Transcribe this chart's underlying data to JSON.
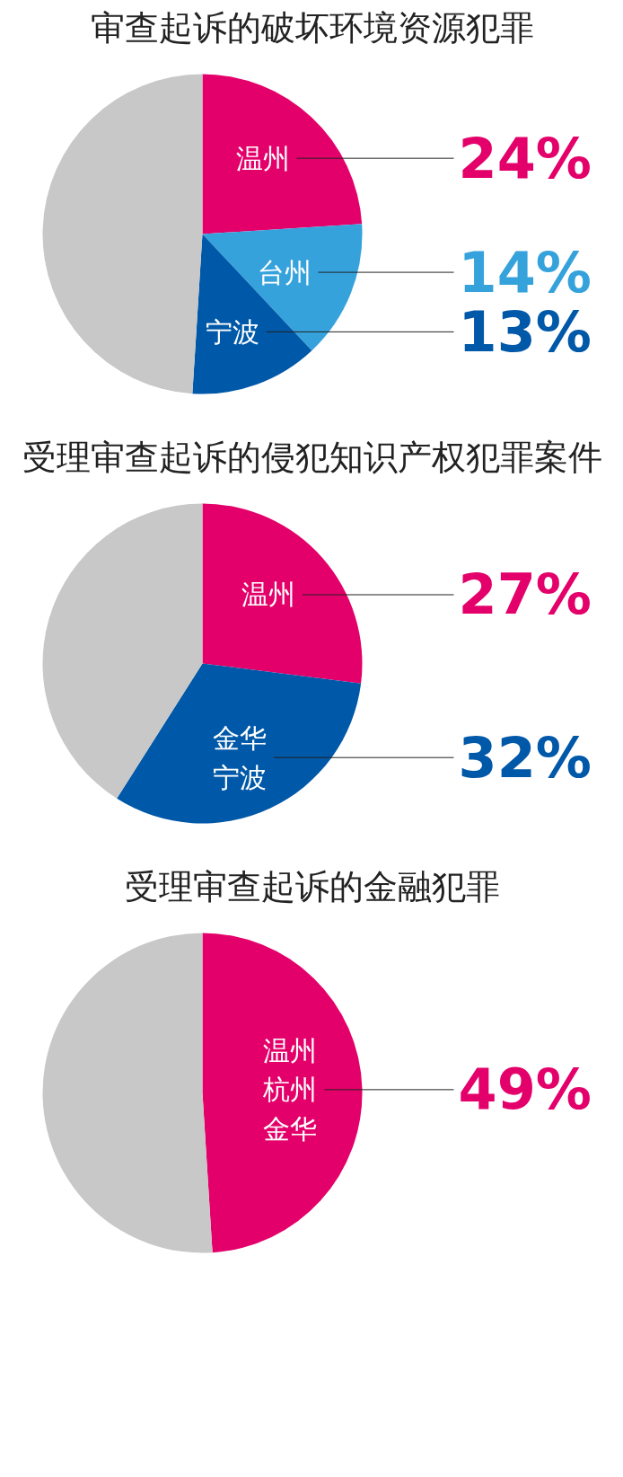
{
  "chart_data": [
    {
      "type": "pie",
      "title": "审查起诉的破坏环境资源犯罪",
      "categories": [
        "温州",
        "台州",
        "宁波",
        null
      ],
      "values": [
        24,
        14,
        13,
        49
      ],
      "colors": [
        "#e4006a",
        "#36a2dc",
        "#0058a8",
        "#c8c8c8"
      ],
      "value_labels": [
        "24%",
        "14%",
        "13%",
        null
      ]
    },
    {
      "type": "pie",
      "title": "受理审查起诉的侵犯知识产权犯罪案件",
      "categories": [
        "温州",
        "金华宁波",
        null
      ],
      "values": [
        27,
        32,
        41
      ],
      "colors": [
        "#e4006a",
        "#0058a8",
        "#c8c8c8"
      ],
      "value_labels": [
        "27%",
        "32%",
        null
      ]
    },
    {
      "type": "pie",
      "title": "受理审查起诉的金融犯罪",
      "categories": [
        "温州杭州金华",
        null
      ],
      "values": [
        49,
        51
      ],
      "colors": [
        "#e4006a",
        "#c8c8c8"
      ],
      "value_labels": [
        "49%",
        null
      ]
    }
  ]
}
